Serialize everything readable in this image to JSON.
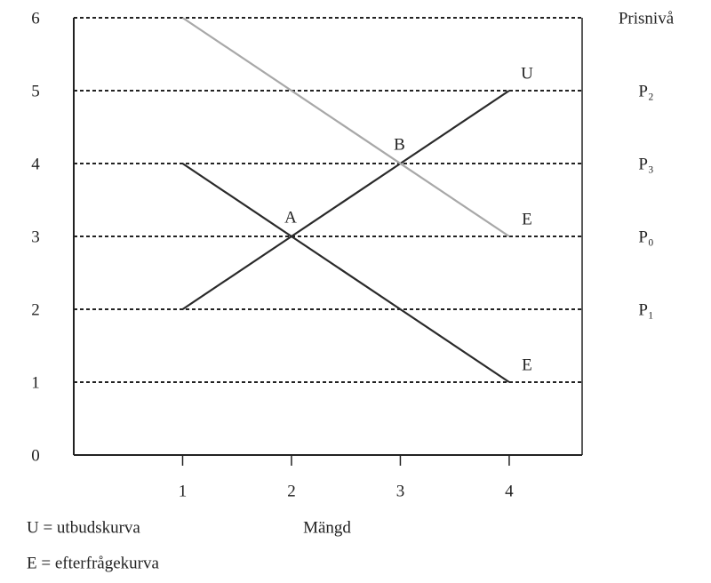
{
  "chart_data": {
    "type": "line",
    "x_label": "Mängd",
    "xlim": [
      0,
      4.67
    ],
    "ylim": [
      0,
      6
    ],
    "xticks": [
      1,
      2,
      3,
      4
    ],
    "yticks": [
      0,
      1,
      2,
      3,
      4,
      5,
      6
    ],
    "grid": true,
    "series": [
      {
        "name": "U",
        "color": "#2a2a2a",
        "x": [
          1,
          2,
          3,
          4
        ],
        "values": [
          2,
          3,
          4,
          5
        ]
      },
      {
        "name": "E",
        "color": "#2a2a2a",
        "x": [
          1,
          2,
          3,
          4
        ],
        "values": [
          4,
          3,
          2,
          1
        ]
      },
      {
        "name": "E",
        "color": "#a8a8a8",
        "x": [
          1,
          4
        ],
        "values": [
          6,
          3
        ]
      }
    ],
    "price_labels": [
      {
        "value": 6,
        "label": "Prisnivå"
      },
      {
        "value": 5,
        "label": "P₂"
      },
      {
        "value": 4,
        "label": "P₃"
      },
      {
        "value": 3,
        "label": "P₀"
      },
      {
        "value": 2,
        "label": "P₁"
      }
    ],
    "point_labels": [
      {
        "label": "A",
        "x": 2,
        "y": 3
      },
      {
        "label": "B",
        "x": 3,
        "y": 4
      }
    ],
    "legend_notes": [
      "U = utbudskurva",
      "E = efterfrågekurva"
    ]
  }
}
